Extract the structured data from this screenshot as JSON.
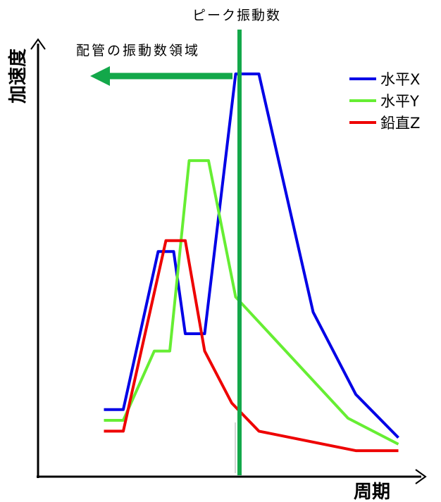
{
  "chart_data": {
    "type": "line",
    "title": "",
    "xlabel": "周期",
    "ylabel": "加速度",
    "legend_position": "top-right",
    "grid": false,
    "xlim": [
      0,
      100
    ],
    "ylim": [
      0,
      100
    ],
    "series": [
      {
        "name": "水平X",
        "color": "#0000e6",
        "points": [
          [
            17,
            15.5
          ],
          [
            22,
            15.5
          ],
          [
            31,
            52
          ],
          [
            35,
            52
          ],
          [
            38,
            33
          ],
          [
            43,
            33
          ],
          [
            51,
            93
          ],
          [
            57,
            93
          ],
          [
            71,
            38
          ],
          [
            82,
            19
          ],
          [
            93,
            9
          ]
        ]
      },
      {
        "name": "水平Y",
        "color": "#66ee33",
        "points": [
          [
            17,
            13
          ],
          [
            22,
            13
          ],
          [
            30,
            29
          ],
          [
            34,
            29
          ],
          [
            39,
            73
          ],
          [
            44,
            73
          ],
          [
            51,
            41.5
          ],
          [
            80,
            13.5
          ],
          [
            93,
            7.5
          ]
        ]
      },
      {
        "name": "鉛直Z",
        "color": "#ee0000",
        "points": [
          [
            17,
            10.5
          ],
          [
            22,
            10.5
          ],
          [
            33,
            54.5
          ],
          [
            38,
            54.5
          ],
          [
            43,
            29
          ],
          [
            50,
            17
          ],
          [
            57,
            10.5
          ],
          [
            82,
            6
          ],
          [
            93,
            6
          ]
        ]
      }
    ],
    "annotations": {
      "peak_label": "ピーク振動数",
      "peak_x": 52,
      "peak_color": "#13a84a",
      "region_label": "配管の振動数領域"
    }
  }
}
